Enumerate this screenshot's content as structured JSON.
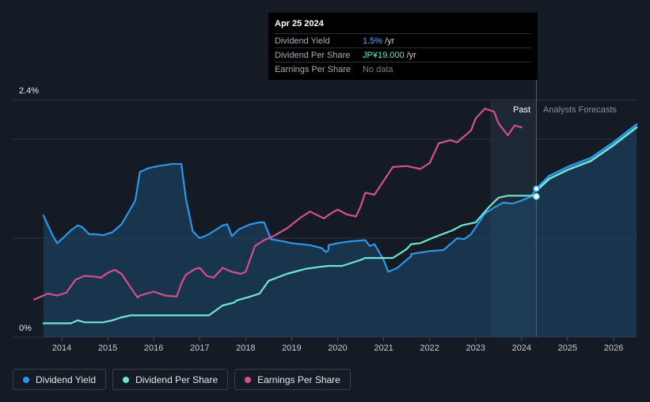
{
  "chart_data": {
    "type": "line",
    "title": "",
    "y_axis": {
      "top_label": "2.4%",
      "bottom_label": "0%"
    },
    "x_ticks": [
      "2014",
      "2015",
      "2016",
      "2017",
      "2018",
      "2019",
      "2020",
      "2021",
      "2022",
      "2023",
      "2024",
      "2025",
      "2026"
    ],
    "regions": {
      "past_label": "Past",
      "forecast_label": "Analysts Forecasts"
    },
    "series": [
      {
        "name": "Dividend Yield",
        "unit": "%",
        "color": "#2e96e8",
        "points": [
          [
            2013.6,
            1.23
          ],
          [
            2013.8,
            1.03
          ],
          [
            2013.9,
            0.95
          ],
          [
            2014.0,
            0.99
          ],
          [
            2014.2,
            1.08
          ],
          [
            2014.35,
            1.13
          ],
          [
            2014.45,
            1.11
          ],
          [
            2014.6,
            1.04
          ],
          [
            2014.75,
            1.04
          ],
          [
            2014.9,
            1.03
          ],
          [
            2015.1,
            1.06
          ],
          [
            2015.3,
            1.14
          ],
          [
            2015.5,
            1.3
          ],
          [
            2015.6,
            1.38
          ],
          [
            2015.7,
            1.67
          ],
          [
            2015.9,
            1.71
          ],
          [
            2016.1,
            1.73
          ],
          [
            2016.4,
            1.75
          ],
          [
            2016.6,
            1.75
          ],
          [
            2016.7,
            1.4
          ],
          [
            2016.85,
            1.07
          ],
          [
            2017.0,
            1.0
          ],
          [
            2017.2,
            1.04
          ],
          [
            2017.5,
            1.13
          ],
          [
            2017.6,
            1.14
          ],
          [
            2017.7,
            1.02
          ],
          [
            2017.85,
            1.09
          ],
          [
            2018.1,
            1.14
          ],
          [
            2018.3,
            1.16
          ],
          [
            2018.4,
            1.16
          ],
          [
            2018.55,
            0.99
          ],
          [
            2018.8,
            0.97
          ],
          [
            2019.0,
            0.95
          ],
          [
            2019.4,
            0.93
          ],
          [
            2019.65,
            0.9
          ],
          [
            2019.75,
            0.86
          ],
          [
            2019.8,
            0.88
          ],
          [
            2019.8,
            0.93
          ],
          [
            2020.0,
            0.95
          ],
          [
            2020.3,
            0.97
          ],
          [
            2020.6,
            0.98
          ],
          [
            2020.7,
            0.92
          ],
          [
            2020.8,
            0.94
          ],
          [
            2021.0,
            0.78
          ],
          [
            2021.1,
            0.66
          ],
          [
            2021.3,
            0.7
          ],
          [
            2021.6,
            0.82
          ],
          [
            2021.6,
            0.84
          ],
          [
            2022.0,
            0.87
          ],
          [
            2022.3,
            0.88
          ],
          [
            2022.6,
            1.0
          ],
          [
            2022.75,
            0.99
          ],
          [
            2022.9,
            1.04
          ],
          [
            2023.2,
            1.25
          ],
          [
            2023.4,
            1.31
          ],
          [
            2023.6,
            1.36
          ],
          [
            2023.8,
            1.35
          ],
          [
            2024.0,
            1.38
          ],
          [
            2024.2,
            1.42
          ],
          [
            2024.32,
            1.5
          ]
        ],
        "forecast": [
          [
            2024.32,
            1.5
          ],
          [
            2024.6,
            1.63
          ],
          [
            2025.0,
            1.72
          ],
          [
            2025.5,
            1.81
          ],
          [
            2026.0,
            1.97
          ],
          [
            2026.5,
            2.15
          ]
        ]
      },
      {
        "name": "Dividend Per Share",
        "unit": "JP¥",
        "color": "#6fe6cf",
        "points": [
          [
            2013.6,
            0.14
          ],
          [
            2014.1,
            0.14
          ],
          [
            2014.2,
            0.14
          ],
          [
            2014.35,
            0.17
          ],
          [
            2014.5,
            0.15
          ],
          [
            2014.6,
            0.15
          ],
          [
            2014.9,
            0.15
          ],
          [
            2015.1,
            0.17
          ],
          [
            2015.3,
            0.2
          ],
          [
            2015.5,
            0.22
          ],
          [
            2016.0,
            0.22
          ],
          [
            2017.2,
            0.22
          ],
          [
            2017.5,
            0.32
          ],
          [
            2017.75,
            0.35
          ],
          [
            2017.8,
            0.37
          ],
          [
            2018.1,
            0.41
          ],
          [
            2018.3,
            0.44
          ],
          [
            2018.5,
            0.57
          ],
          [
            2018.9,
            0.64
          ],
          [
            2019.3,
            0.69
          ],
          [
            2019.6,
            0.71
          ],
          [
            2019.8,
            0.72
          ],
          [
            2020.1,
            0.72
          ],
          [
            2020.5,
            0.78
          ],
          [
            2020.6,
            0.8
          ],
          [
            2021.0,
            0.8
          ],
          [
            2021.2,
            0.8
          ],
          [
            2021.5,
            0.89
          ],
          [
            2021.6,
            0.94
          ],
          [
            2021.8,
            0.95
          ],
          [
            2022.1,
            1.01
          ],
          [
            2022.5,
            1.08
          ],
          [
            2022.7,
            1.13
          ],
          [
            2023.0,
            1.16
          ],
          [
            2023.3,
            1.32
          ],
          [
            2023.5,
            1.41
          ],
          [
            2023.7,
            1.43
          ],
          [
            2024.0,
            1.43
          ],
          [
            2024.32,
            1.43
          ]
        ],
        "forecast": [
          [
            2024.32,
            1.48
          ],
          [
            2024.6,
            1.6
          ],
          [
            2025.0,
            1.69
          ],
          [
            2025.5,
            1.78
          ],
          [
            2026.0,
            1.94
          ],
          [
            2026.5,
            2.12
          ]
        ]
      },
      {
        "name": "Earnings Per Share",
        "unit": "JP¥",
        "color": "#d4508a",
        "points": [
          [
            2013.4,
            0.38
          ],
          [
            2013.7,
            0.44
          ],
          [
            2013.9,
            0.42
          ],
          [
            2014.1,
            0.45
          ],
          [
            2014.3,
            0.58
          ],
          [
            2014.5,
            0.62
          ],
          [
            2014.75,
            0.61
          ],
          [
            2014.85,
            0.6
          ],
          [
            2015.0,
            0.65
          ],
          [
            2015.15,
            0.68
          ],
          [
            2015.3,
            0.64
          ],
          [
            2015.5,
            0.5
          ],
          [
            2015.65,
            0.4
          ],
          [
            2015.7,
            0.42
          ],
          [
            2016.0,
            0.46
          ],
          [
            2016.25,
            0.42
          ],
          [
            2016.5,
            0.41
          ],
          [
            2016.6,
            0.54
          ],
          [
            2016.7,
            0.63
          ],
          [
            2016.9,
            0.69
          ],
          [
            2017.0,
            0.7
          ],
          [
            2017.15,
            0.62
          ],
          [
            2017.3,
            0.6
          ],
          [
            2017.5,
            0.7
          ],
          [
            2017.7,
            0.66
          ],
          [
            2017.9,
            0.64
          ],
          [
            2018.0,
            0.66
          ],
          [
            2018.2,
            0.92
          ],
          [
            2018.4,
            0.98
          ],
          [
            2018.6,
            1.02
          ],
          [
            2018.9,
            1.1
          ],
          [
            2019.2,
            1.21
          ],
          [
            2019.4,
            1.27
          ],
          [
            2019.7,
            1.2
          ],
          [
            2019.85,
            1.25
          ],
          [
            2020.0,
            1.29
          ],
          [
            2020.2,
            1.24
          ],
          [
            2020.4,
            1.22
          ],
          [
            2020.5,
            1.32
          ],
          [
            2020.6,
            1.46
          ],
          [
            2020.8,
            1.44
          ],
          [
            2021.0,
            1.58
          ],
          [
            2021.2,
            1.72
          ],
          [
            2021.5,
            1.73
          ],
          [
            2021.8,
            1.7
          ],
          [
            2022.0,
            1.76
          ],
          [
            2022.2,
            1.96
          ],
          [
            2022.45,
            1.99
          ],
          [
            2022.6,
            1.97
          ],
          [
            2022.9,
            2.09
          ],
          [
            2023.0,
            2.21
          ],
          [
            2023.2,
            2.31
          ],
          [
            2023.4,
            2.28
          ],
          [
            2023.5,
            2.16
          ],
          [
            2023.7,
            2.04
          ],
          [
            2023.85,
            2.14
          ],
          [
            2024.0,
            2.12
          ]
        ],
        "forecast": []
      }
    ],
    "past_shade_start": 2023.32,
    "divider_x": 2024.32,
    "xlim": [
      2013.4,
      2026.5
    ],
    "ylim": [
      0,
      2.4
    ]
  },
  "tooltip": {
    "date": "Apr 25 2024",
    "rows": [
      {
        "label": "Dividend Yield",
        "value": "1.5%",
        "unit": "/yr"
      },
      {
        "label": "Dividend Per Share",
        "value": "JP¥19.000",
        "unit": "/yr"
      },
      {
        "label": "Earnings Per Share",
        "value": "No data",
        "unit": ""
      }
    ]
  },
  "legend": [
    {
      "label": "Dividend Yield",
      "color": "#2e96e8"
    },
    {
      "label": "Dividend Per Share",
      "color": "#6fe6cf"
    },
    {
      "label": "Earnings Per Share",
      "color": "#d4508a"
    }
  ]
}
